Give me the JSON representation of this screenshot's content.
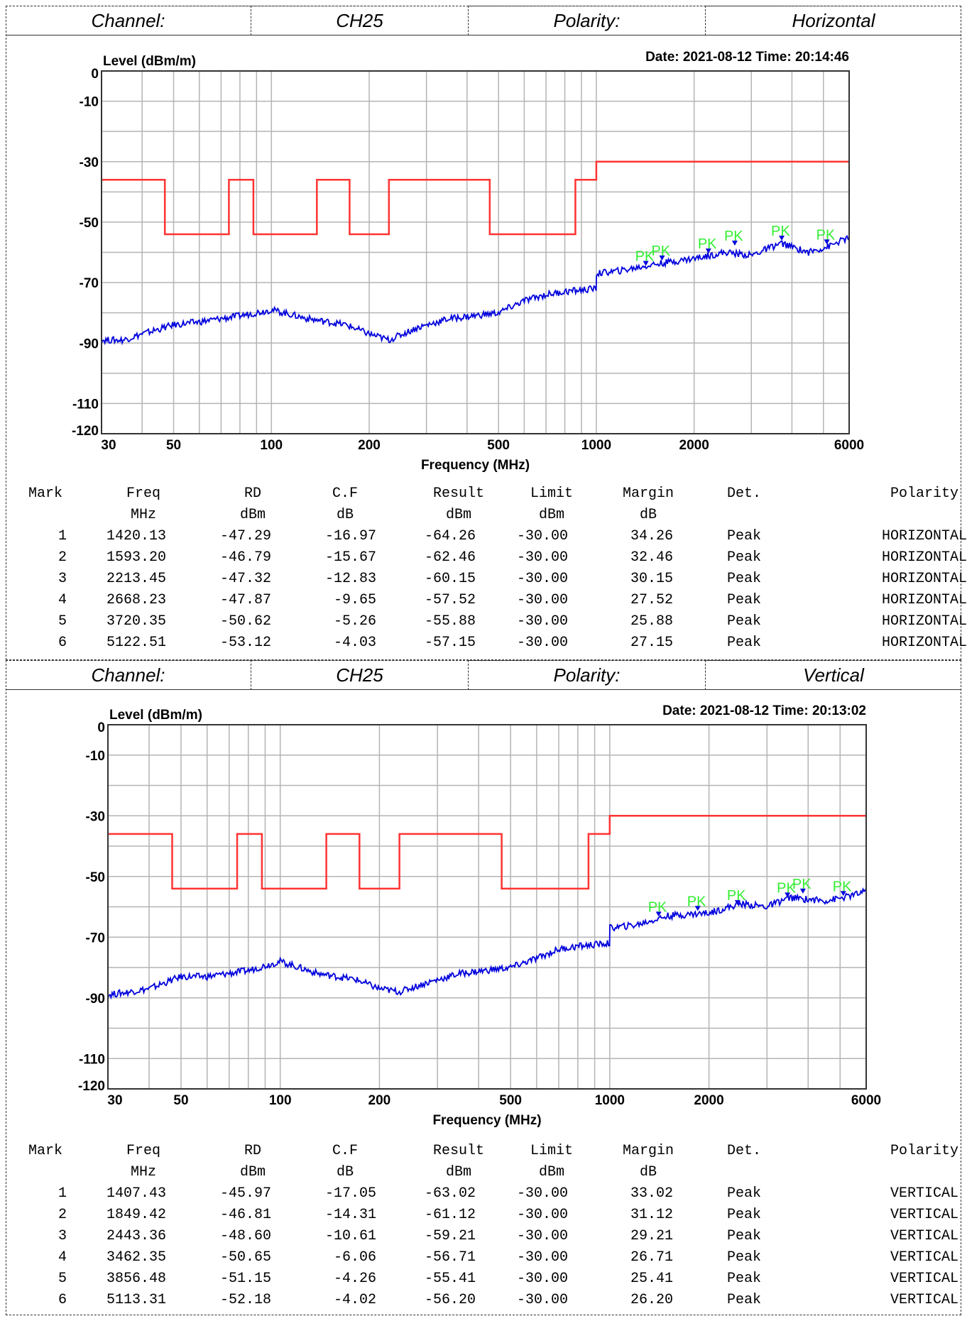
{
  "sections": [
    {
      "header": {
        "channel_label": "Channel:",
        "channel": "CH25",
        "polarity_label": "Polarity:",
        "polarity": "Horizontal"
      },
      "chart_data": {
        "type": "line",
        "ylabel": "Level (dBm/m)",
        "xlabel": "Frequency (MHz)",
        "date_time": "Date: 2021-08-12  Time: 20:14:46",
        "xscale": "log",
        "xlim": [
          30,
          6000
        ],
        "ylim": [
          -120,
          0
        ],
        "y_ticks": [
          "0",
          "-10",
          "-30",
          "-50",
          "-70",
          "-90",
          "-110",
          "-120"
        ],
        "x_ticks": [
          "30",
          "50",
          "100",
          "200",
          "500",
          "1000",
          "2000",
          "6000"
        ],
        "grid": true,
        "series": [
          {
            "color": "#ff3333",
            "x": [
              30,
              47,
              47,
              74,
              74,
              88,
              88,
              138,
              138,
              174,
              174,
              230,
              230,
              470,
              470,
              862,
              862,
              1000,
              1000,
              6000
            ],
            "y": [
              -36,
              -36,
              -54,
              -54,
              -36,
              -36,
              -54,
              -54,
              -36,
              -36,
              -54,
              -54,
              -36,
              -36,
              -54,
              -54,
              -36,
              -36,
              -30,
              -30
            ]
          },
          {
            "color": "#0000dd",
            "x": [
              30,
              35,
              40,
              50,
              60,
              80,
              100,
              130,
              170,
              200,
              230,
              280,
              350,
              420,
              500,
              600,
              700,
              800,
              999,
              1001,
              1200,
              1500,
              2000,
              2500,
              3000,
              3700,
              4500,
              5200,
              6000
            ],
            "y": [
              -89,
              -89,
              -87,
              -84,
              -83,
              -81,
              -79,
              -82,
              -84,
              -87,
              -89,
              -85,
              -82,
              -81,
              -80,
              -76,
              -74,
              -73,
              -72,
              -67,
              -66,
              -64,
              -62,
              -60,
              -61,
              -57,
              -60,
              -58,
              -55
            ]
          }
        ],
        "markers": [
          {
            "label": "PK",
            "x": 1420.13,
            "y": -64.26
          },
          {
            "label": "PK",
            "x": 1593.2,
            "y": -62.46
          },
          {
            "label": "PK",
            "x": 2213.45,
            "y": -60.15
          },
          {
            "label": "PK",
            "x": 2668.23,
            "y": -57.52
          },
          {
            "label": "PK",
            "x": 3720.35,
            "y": -55.88
          },
          {
            "label": "PK",
            "x": 5122.51,
            "y": -57.15
          }
        ]
      },
      "table": {
        "headers": [
          "Mark",
          "Freq",
          "RD",
          "C.F",
          "Result",
          "Limit",
          "Margin",
          "Det.",
          "Polarity"
        ],
        "units": [
          "",
          "MHz",
          "dBm",
          "dB",
          "dBm",
          "dBm",
          "dB",
          "",
          ""
        ],
        "rows": [
          [
            "1",
            "1420.13",
            "-47.29",
            "-16.97",
            "-64.26",
            "-30.00",
            "34.26",
            "Peak",
            "HORIZONTAL"
          ],
          [
            "2",
            "1593.20",
            "-46.79",
            "-15.67",
            "-62.46",
            "-30.00",
            "32.46",
            "Peak",
            "HORIZONTAL"
          ],
          [
            "3",
            "2213.45",
            "-47.32",
            "-12.83",
            "-60.15",
            "-30.00",
            "30.15",
            "Peak",
            "HORIZONTAL"
          ],
          [
            "4",
            "2668.23",
            "-47.87",
            "-9.65",
            "-57.52",
            "-30.00",
            "27.52",
            "Peak",
            "HORIZONTAL"
          ],
          [
            "5",
            "3720.35",
            "-50.62",
            "-5.26",
            "-55.88",
            "-30.00",
            "25.88",
            "Peak",
            "HORIZONTAL"
          ],
          [
            "6",
            "5122.51",
            "-53.12",
            "-4.03",
            "-57.15",
            "-30.00",
            "27.15",
            "Peak",
            "HORIZONTAL"
          ]
        ]
      }
    },
    {
      "header": {
        "channel_label": "Channel:",
        "channel": "CH25",
        "polarity_label": "Polarity:",
        "polarity": "Vertical"
      },
      "chart_data": {
        "type": "line",
        "ylabel": "Level (dBm/m)",
        "xlabel": "Frequency (MHz)",
        "date_time": "Date: 2021-08-12  Time: 20:13:02",
        "xscale": "log",
        "xlim": [
          30,
          6000
        ],
        "ylim": [
          -120,
          0
        ],
        "y_ticks": [
          "0",
          "-10",
          "-30",
          "-50",
          "-70",
          "-90",
          "-110",
          "-120"
        ],
        "x_ticks": [
          "30",
          "50",
          "100",
          "200",
          "500",
          "1000",
          "2000",
          "6000"
        ],
        "grid": true,
        "series": [
          {
            "color": "#ff3333",
            "x": [
              30,
              47,
              47,
              74,
              74,
              88,
              88,
              138,
              138,
              174,
              174,
              230,
              230,
              470,
              470,
              862,
              862,
              1000,
              1000,
              6000
            ],
            "y": [
              -36,
              -36,
              -54,
              -54,
              -36,
              -36,
              -54,
              -54,
              -36,
              -36,
              -54,
              -54,
              -36,
              -36,
              -54,
              -54,
              -36,
              -36,
              -30,
              -30
            ]
          },
          {
            "color": "#0000dd",
            "x": [
              30,
              35,
              40,
              50,
              60,
              80,
              100,
              130,
              170,
              200,
              230,
              280,
              350,
              420,
              500,
              600,
              700,
              800,
              999,
              1001,
              1200,
              1500,
              2000,
              2500,
              3000,
              3500,
              4500,
              5100,
              6000
            ],
            "y": [
              -89,
              -88,
              -87,
              -83,
              -83,
              -81,
              -78,
              -82,
              -84,
              -87,
              -88,
              -85,
              -82,
              -81,
              -80,
              -77,
              -74,
              -73,
              -72,
              -67,
              -66,
              -63,
              -62,
              -59,
              -60,
              -57,
              -58,
              -57,
              -55
            ]
          }
        ],
        "markers": [
          {
            "label": "PK",
            "x": 1407.43,
            "y": -63.02
          },
          {
            "label": "PK",
            "x": 1849.42,
            "y": -61.12
          },
          {
            "label": "PK",
            "x": 2443.36,
            "y": -59.21
          },
          {
            "label": "PK",
            "x": 3462.35,
            "y": -56.71
          },
          {
            "label": "PK",
            "x": 3856.48,
            "y": -55.41
          },
          {
            "label": "PK",
            "x": 5113.31,
            "y": -56.2
          }
        ]
      },
      "table": {
        "headers": [
          "Mark",
          "Freq",
          "RD",
          "C.F",
          "Result",
          "Limit",
          "Margin",
          "Det.",
          "Polarity"
        ],
        "units": [
          "",
          "MHz",
          "dBm",
          "dB",
          "dBm",
          "dBm",
          "dB",
          "",
          ""
        ],
        "rows": [
          [
            "1",
            "1407.43",
            "-45.97",
            "-17.05",
            "-63.02",
            "-30.00",
            "33.02",
            "Peak",
            "VERTICAL"
          ],
          [
            "2",
            "1849.42",
            "-46.81",
            "-14.31",
            "-61.12",
            "-30.00",
            "31.12",
            "Peak",
            "VERTICAL"
          ],
          [
            "3",
            "2443.36",
            "-48.60",
            "-10.61",
            "-59.21",
            "-30.00",
            "29.21",
            "Peak",
            "VERTICAL"
          ],
          [
            "4",
            "3462.35",
            "-50.65",
            "-6.06",
            "-56.71",
            "-30.00",
            "26.71",
            "Peak",
            "VERTICAL"
          ],
          [
            "5",
            "3856.48",
            "-51.15",
            "-4.26",
            "-55.41",
            "-30.00",
            "25.41",
            "Peak",
            "VERTICAL"
          ],
          [
            "6",
            "5113.31",
            "-52.18",
            "-4.02",
            "-56.20",
            "-30.00",
            "26.20",
            "Peak",
            "VERTICAL"
          ]
        ]
      }
    }
  ]
}
